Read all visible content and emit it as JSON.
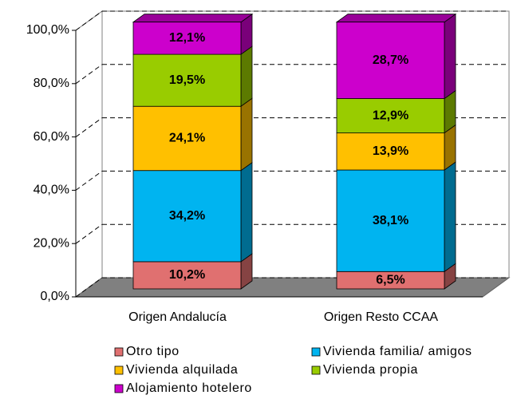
{
  "chart_data": {
    "type": "bar3d_stacked",
    "categories": [
      "Origen Andalucía",
      "Origen Resto CCAA"
    ],
    "series": [
      {
        "name": "Otro tipo",
        "color": "#e07070",
        "values": [
          10.2,
          6.5
        ],
        "value_labels": [
          "10,2%",
          "6,5%"
        ]
      },
      {
        "name": "Vivienda familia/ amigos",
        "color": "#00b4f0",
        "values": [
          34.2,
          38.1
        ],
        "value_labels": [
          "34,2%",
          "38,1%"
        ]
      },
      {
        "name": "Vivienda alquilada",
        "color": "#ffc000",
        "values": [
          24.1,
          13.9
        ],
        "value_labels": [
          "24,1%",
          "13,9%"
        ]
      },
      {
        "name": "Vivienda propia",
        "color": "#99cc00",
        "values": [
          19.5,
          12.9
        ],
        "value_labels": [
          "19,5%",
          "12,9%"
        ]
      },
      {
        "name": "Alojamiento hotelero",
        "color": "#cc00cc",
        "values": [
          12.1,
          28.7
        ],
        "value_labels": [
          "12,1%",
          "28,7%"
        ]
      }
    ],
    "ylim": [
      0,
      100
    ],
    "yticks": [
      {
        "value": 0,
        "label": "0,0%"
      },
      {
        "value": 20,
        "label": "20,0%"
      },
      {
        "value": 40,
        "label": "40,0%"
      },
      {
        "value": 60,
        "label": "60,0%"
      },
      {
        "value": 80,
        "label": "80,0%"
      },
      {
        "value": 100,
        "label": "100,0%"
      }
    ],
    "grid": true
  }
}
